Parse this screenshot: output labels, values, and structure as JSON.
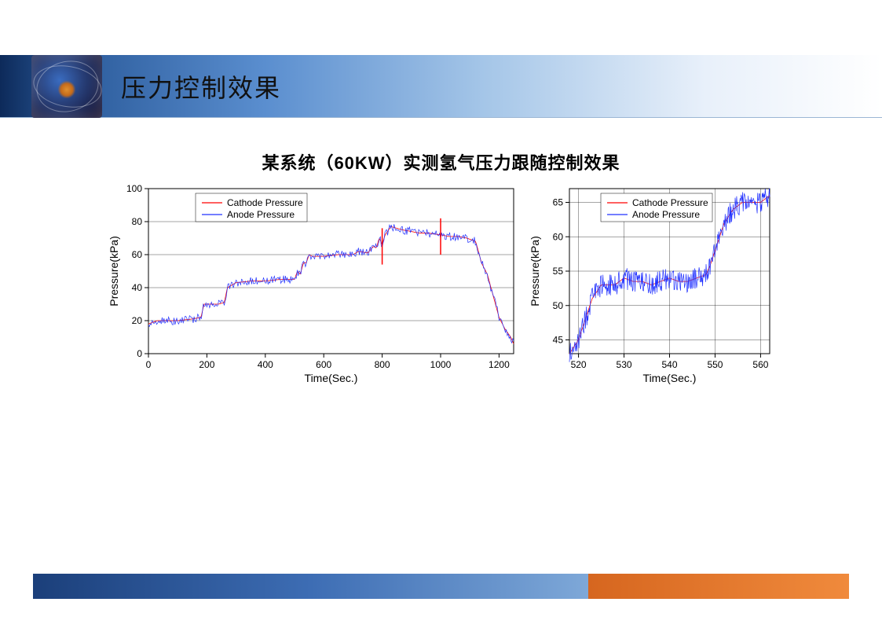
{
  "header": {
    "title": "压力控制效果"
  },
  "chart_title": "某系统（60KW）实测氢气压力跟随控制效果",
  "legend": {
    "cathode": "Cathode Pressure",
    "anode": "Anode Pressure",
    "cathode_color": "#ff0000",
    "anode_color": "#2030ff"
  },
  "chart_left": {
    "type": "line",
    "xlabel": "Time(Sec.)",
    "ylabel": "Pressure(kPa)",
    "xlim": [
      0,
      1250
    ],
    "ylim": [
      0,
      100
    ],
    "xtick_step": 200,
    "ytick_step": 20,
    "background_color": "#ffffff",
    "grid_color": "#000000",
    "cathode_data": [
      [
        0,
        18
      ],
      [
        30,
        20
      ],
      [
        60,
        20
      ],
      [
        100,
        20
      ],
      [
        150,
        21
      ],
      [
        180,
        22
      ],
      [
        190,
        30
      ],
      [
        200,
        30
      ],
      [
        240,
        30
      ],
      [
        260,
        31
      ],
      [
        270,
        40
      ],
      [
        300,
        43
      ],
      [
        350,
        44
      ],
      [
        400,
        44
      ],
      [
        450,
        45
      ],
      [
        500,
        45
      ],
      [
        510,
        50
      ],
      [
        520,
        48
      ],
      [
        530,
        55
      ],
      [
        540,
        55
      ],
      [
        550,
        60
      ],
      [
        560,
        59
      ],
      [
        580,
        59
      ],
      [
        600,
        59
      ],
      [
        650,
        60
      ],
      [
        700,
        60
      ],
      [
        720,
        62
      ],
      [
        750,
        61
      ],
      [
        770,
        65
      ],
      [
        780,
        64
      ],
      [
        790,
        70
      ],
      [
        800,
        66
      ],
      [
        810,
        72
      ],
      [
        830,
        77
      ],
      [
        850,
        76
      ],
      [
        870,
        75
      ],
      [
        900,
        74
      ],
      [
        930,
        73
      ],
      [
        960,
        73
      ],
      [
        1000,
        72
      ],
      [
        1030,
        71
      ],
      [
        1060,
        71
      ],
      [
        1090,
        70
      ],
      [
        1120,
        68
      ],
      [
        1140,
        55
      ],
      [
        1160,
        48
      ],
      [
        1180,
        35
      ],
      [
        1200,
        22
      ],
      [
        1220,
        15
      ],
      [
        1240,
        10
      ],
      [
        1250,
        6
      ]
    ],
    "anode_noise": 2.5,
    "red_spikes": [
      800,
      1000
    ]
  },
  "chart_right": {
    "type": "line",
    "xlabel": "Time(Sec.)",
    "ylabel": "Pressure(kPa)",
    "xlim": [
      518,
      562
    ],
    "ylim": [
      43,
      67
    ],
    "xticks": [
      520,
      530,
      540,
      550,
      560
    ],
    "yticks": [
      45,
      50,
      55,
      60,
      65
    ],
    "background_color": "#ffffff",
    "grid_color": "#000000",
    "cathode_data": [
      [
        518,
        43
      ],
      [
        519,
        44
      ],
      [
        520,
        45
      ],
      [
        521,
        47
      ],
      [
        522,
        49
      ],
      [
        523,
        51
      ],
      [
        524,
        52
      ],
      [
        525,
        53
      ],
      [
        526,
        53
      ],
      [
        528,
        53
      ],
      [
        530,
        54
      ],
      [
        532,
        53.5
      ],
      [
        534,
        53.5
      ],
      [
        536,
        53
      ],
      [
        538,
        53.5
      ],
      [
        540,
        54
      ],
      [
        542,
        53.5
      ],
      [
        544,
        53.5
      ],
      [
        546,
        54
      ],
      [
        548,
        54.5
      ],
      [
        549,
        56
      ],
      [
        550,
        58
      ],
      [
        551,
        60
      ],
      [
        552,
        62
      ],
      [
        553,
        63
      ],
      [
        554,
        64
      ],
      [
        556,
        65
      ],
      [
        558,
        65
      ],
      [
        560,
        65
      ],
      [
        562,
        66
      ]
    ],
    "anode_noise": 1.6
  },
  "colors": {
    "title_bar_start": "#0d2a5a",
    "title_bar_end": "#ffffff",
    "footer_blue": "#3d6db4",
    "footer_orange": "#f08a3c"
  }
}
